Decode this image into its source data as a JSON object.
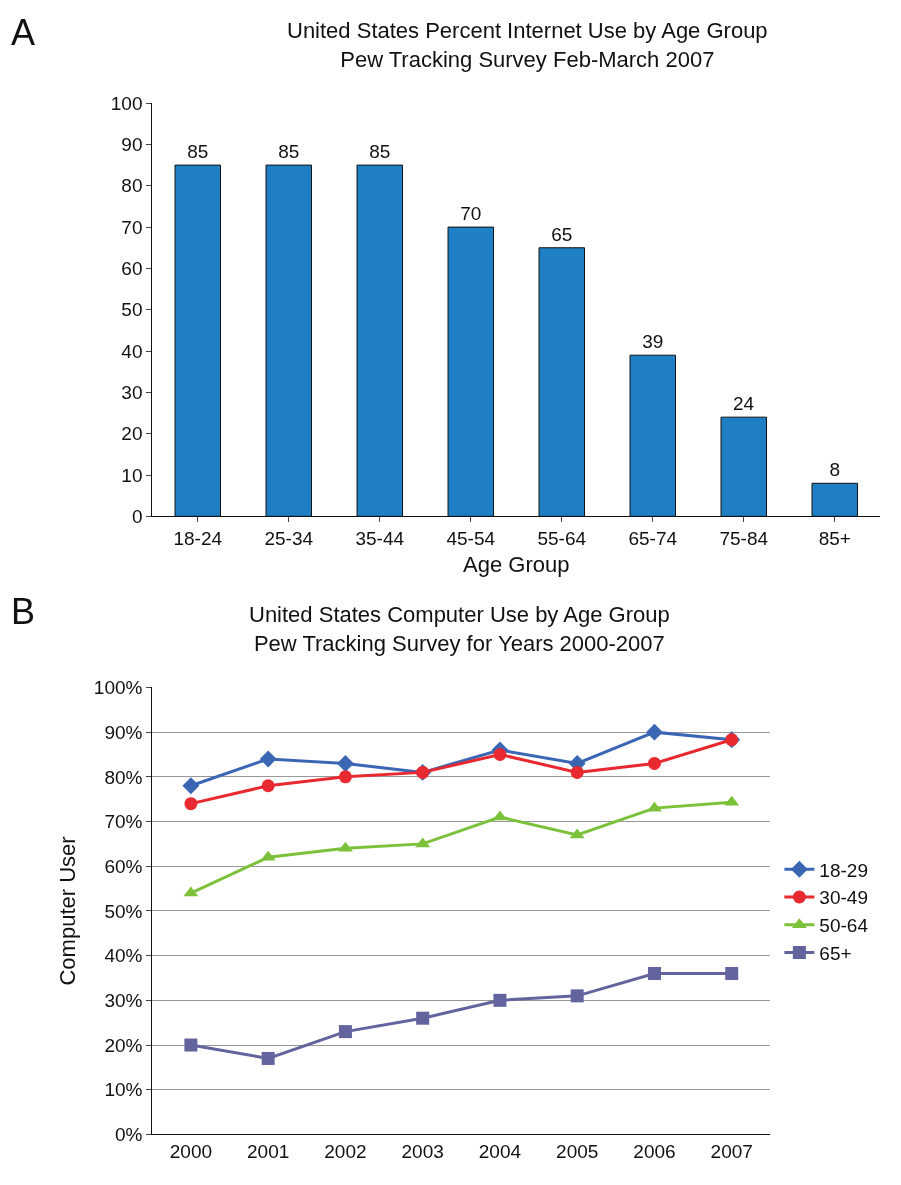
{
  "chart_data": [
    {
      "type": "bar",
      "title": "United States Percent Internet Use by Age Group\nPew Tracking Survey Feb-March 2007",
      "xlabel": "Age Group",
      "annotations": [
        "A"
      ],
      "categories": [
        "18-24",
        "25-34",
        "35-44",
        "45-54",
        "55-64",
        "65-74",
        "75-84",
        "85+"
      ],
      "values": [
        85,
        85,
        85,
        70,
        65,
        39,
        24,
        8
      ],
      "color": "#1f7fc4",
      "data_labels": true,
      "ylim": [
        0,
        100
      ],
      "yticks": [
        0,
        10,
        20,
        30,
        40,
        50,
        60,
        70,
        80,
        90,
        100
      ],
      "grid": false,
      "legend": false
    },
    {
      "type": "line",
      "title": "United States Computer Use by Age Group\nPew Tracking Survey for Years 2000-2007",
      "ylabel": "Computer User",
      "annotations": [
        "B"
      ],
      "categories": [
        "2000",
        "2001",
        "2002",
        "2003",
        "2004",
        "2005",
        "2006",
        "2007"
      ],
      "series": [
        {
          "name": "18-29",
          "color": "#3a66b4",
          "marker": "diamond",
          "values": [
            78,
            84,
            83,
            81,
            86,
            83,
            90,
            88.3
          ]
        },
        {
          "name": "30-49",
          "color": "#e8292f",
          "marker": "circle",
          "values": [
            74,
            78,
            80,
            81,
            85,
            81,
            83,
            88.3
          ]
        },
        {
          "name": "50-64",
          "color": "#7cc13a",
          "marker": "triangle",
          "values": [
            54,
            62,
            64,
            65,
            71,
            67,
            73,
            74.3
          ]
        },
        {
          "name": "65+",
          "color": "#63639e",
          "marker": "square",
          "values": [
            20,
            17,
            23,
            26,
            30,
            31,
            36,
            36
          ]
        }
      ],
      "ylim": [
        0,
        100
      ],
      "yticks": [
        {
          "value": 0,
          "label": "0%"
        },
        {
          "value": 10,
          "label": "10%"
        },
        {
          "value": 20,
          "label": "20%"
        },
        {
          "value": 30,
          "label": "30%"
        },
        {
          "value": 40,
          "label": "40%"
        },
        {
          "value": 50,
          "label": "50%"
        },
        {
          "value": 60,
          "label": "60%"
        },
        {
          "value": 70,
          "label": "70%"
        },
        {
          "value": 80,
          "label": "80%"
        },
        {
          "value": 90,
          "label": "90%"
        },
        {
          "value": 100,
          "label": "100%"
        }
      ],
      "grid": "y",
      "legend": "right",
      "line_style": "solid"
    }
  ]
}
